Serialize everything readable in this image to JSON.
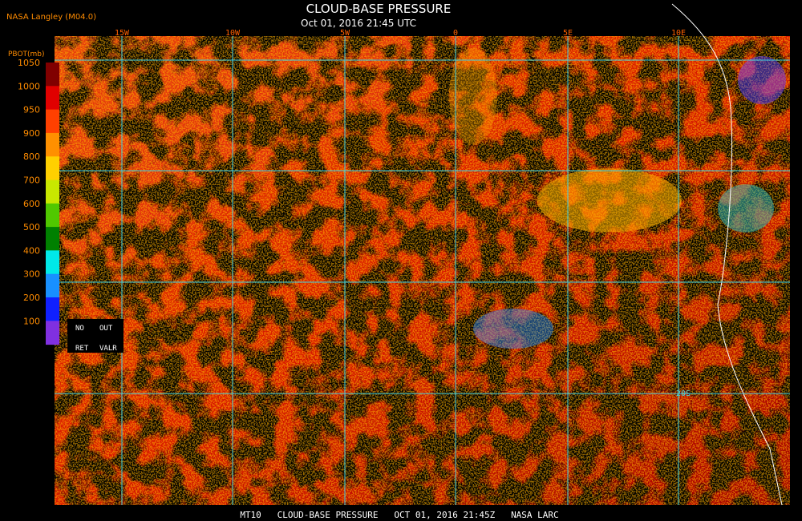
{
  "header": {
    "source": "NASA Langley (M04.0)",
    "title": "CLOUD-BASE PRESSURE",
    "time": "Oct 01, 2016 21:45 UTC"
  },
  "map": {
    "lon_labels": [
      "15W",
      "10W",
      "5W",
      "0",
      "5E",
      "10E"
    ],
    "lat_labels": [
      "20S"
    ]
  },
  "colorbar": {
    "title": "PBOT(mb)",
    "labels": [
      "1050",
      "1000",
      "950",
      "900",
      "800",
      "700",
      "600",
      "500",
      "400",
      "300",
      "200",
      "100"
    ],
    "flags": [
      "NO",
      "OUT",
      "RET",
      "VALR"
    ]
  },
  "footer": "MT10   CLOUD-BASE PRESSURE   OCT 01, 2016 21:45Z   NASA LARC"
}
